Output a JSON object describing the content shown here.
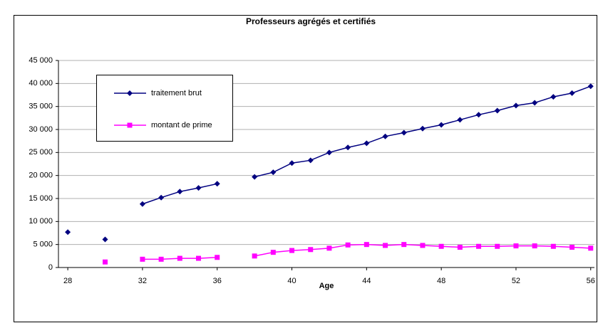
{
  "chart_data": {
    "type": "line",
    "title": "Professeurs agrégés et certifiés",
    "x_label": "Age",
    "x": [
      28,
      29,
      30,
      31,
      32,
      33,
      34,
      35,
      36,
      37,
      38,
      39,
      40,
      41,
      42,
      43,
      44,
      45,
      46,
      47,
      48,
      49,
      50,
      51,
      52,
      53,
      54,
      55,
      56
    ],
    "series": [
      {
        "name": "traitement brut",
        "color": "#000080",
        "marker": "diamond",
        "values": [
          7700,
          null,
          6100,
          null,
          13800,
          15200,
          16500,
          17300,
          18200,
          null,
          19700,
          20700,
          22700,
          23300,
          25000,
          26100,
          27000,
          28500,
          29300,
          30200,
          31000,
          32100,
          33200,
          34100,
          35200,
          35800,
          37100,
          37900,
          39400
        ]
      },
      {
        "name": "montant de prime",
        "color": "#ff00ff",
        "marker": "square",
        "values": [
          null,
          null,
          1200,
          null,
          1800,
          1800,
          2000,
          2000,
          2200,
          null,
          2500,
          3300,
          3700,
          3900,
          4200,
          4900,
          5000,
          4800,
          5000,
          4800,
          4600,
          4400,
          4600,
          4600,
          4700,
          4700,
          4600,
          4400,
          4200
        ]
      }
    ],
    "xlim": [
      27.5,
      56.2
    ],
    "xticks": [
      28,
      32,
      36,
      40,
      44,
      48,
      52,
      56
    ],
    "ylim": [
      0,
      45000
    ],
    "yticks": [
      0,
      {
        "value": 5000,
        "label": "5 000"
      },
      {
        "value": 10000,
        "label": "10 000"
      },
      {
        "value": 15000,
        "label": "15 000"
      },
      {
        "value": 20000,
        "label": "20 000"
      },
      {
        "value": 25000,
        "label": "25 000"
      },
      {
        "value": 30000,
        "label": "30 000"
      },
      {
        "value": 35000,
        "label": "35 000"
      },
      {
        "value": 40000,
        "label": "40 000"
      },
      {
        "value": 45000,
        "label": "45 000"
      }
    ],
    "grid": true,
    "legend": "upper left"
  }
}
